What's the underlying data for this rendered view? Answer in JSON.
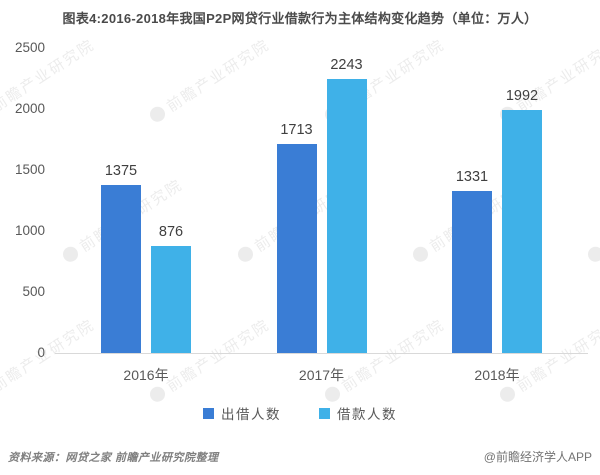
{
  "title": "图表4:2016-2018年我国P2P网贷行业借款行为主体结构变化趋势（单位：万人）",
  "watermark": {
    "text": "前瞻产业研究院",
    "logo": "circle-swoosh-logo"
  },
  "footer": {
    "source": "资料来源：网贷之家  前瞻产业研究院整理",
    "brand": "@前瞻经济学人APP"
  },
  "colors": {
    "series_lenders": "#3a7dd5",
    "series_borrowers": "#3fb1e8",
    "title_text": "#4a4a4a",
    "axis_text": "#595959",
    "value_text": "#404040",
    "axis_line": "#d9d9d9",
    "background": "#ffffff"
  },
  "chart_data": {
    "type": "bar",
    "categories": [
      "2016年",
      "2017年",
      "2018年"
    ],
    "series": [
      {
        "name": "出借人数",
        "color": "#3a7dd5",
        "values": [
          1375,
          1713,
          1331
        ]
      },
      {
        "name": "借款人数",
        "color": "#3fb1e8",
        "values": [
          876,
          2243,
          1992
        ]
      }
    ],
    "title": "图表4:2016-2018年我国P2P网贷行业借款行为主体结构变化趋势（单位：万人）",
    "xlabel": "",
    "ylabel": "",
    "ylim": [
      0,
      2500
    ],
    "yticks": [
      0,
      500,
      1000,
      1500,
      2000,
      2500
    ],
    "grid": false,
    "value_labels": true,
    "legend_position": "bottom"
  }
}
